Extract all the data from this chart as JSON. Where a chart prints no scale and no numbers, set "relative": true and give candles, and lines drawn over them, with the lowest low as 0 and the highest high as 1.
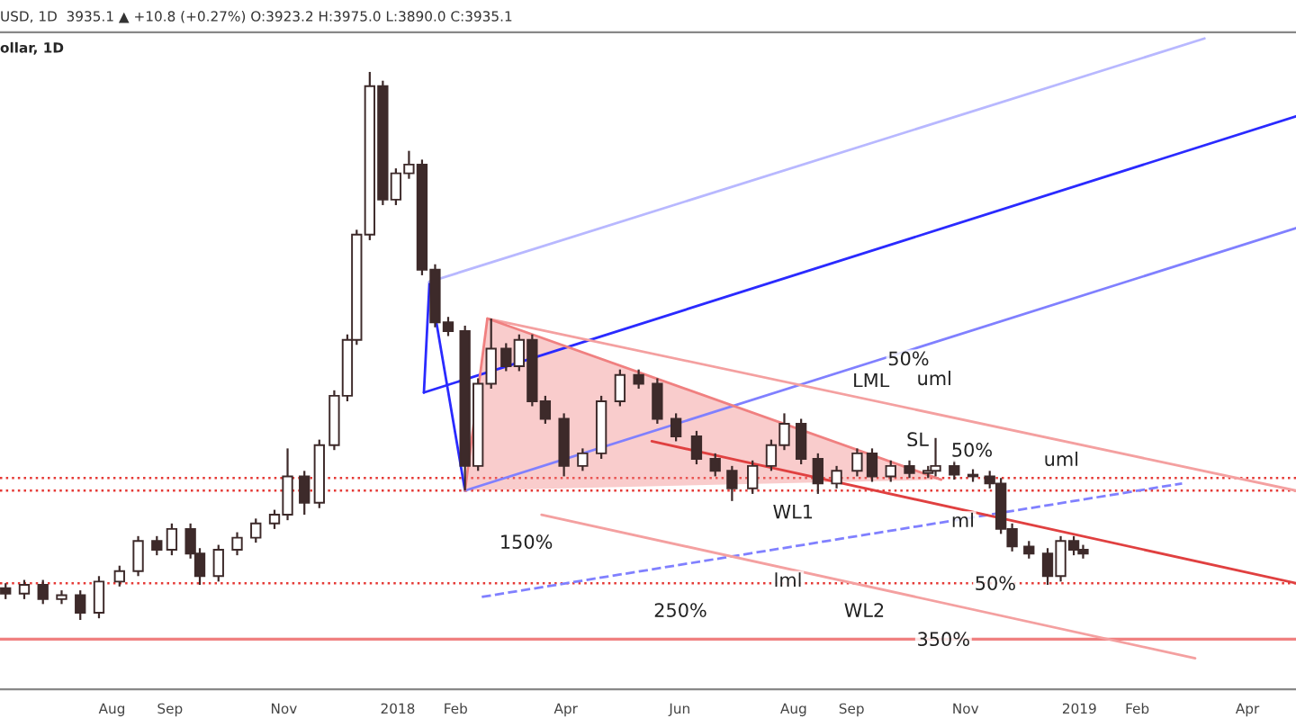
{
  "chart_data": {
    "type": "candlestick",
    "relative": true,
    "title": "ollar, 1D",
    "annotations": [
      "USD, 1D  3935.1 ▲ +10.8 (+0.27%) O:3923.2 H:3975.0 L:3890.0 C:3935.1",
      "50%",
      "uml",
      "LML",
      "SL",
      "50%",
      "uml",
      "WL1",
      "ml",
      "150%",
      "lml",
      "250%",
      "WL2",
      "50%",
      "350%"
    ],
    "x": [
      "2017-06-05",
      "2017-06-15",
      "2017-06-25",
      "2017-07-05",
      "2017-07-15",
      "2017-07-25",
      "2017-08-05",
      "2017-08-15",
      "2017-08-25",
      "2017-09-02",
      "2017-09-12",
      "2017-09-17",
      "2017-09-27",
      "2017-10-07",
      "2017-10-17",
      "2017-10-27",
      "2017-11-03",
      "2017-11-12",
      "2017-11-20",
      "2017-11-28",
      "2017-12-05",
      "2017-12-10",
      "2017-12-17",
      "2017-12-24",
      "2017-12-31",
      "2018-01-07",
      "2018-01-14",
      "2018-01-21",
      "2018-01-28",
      "2018-02-06",
      "2018-02-13",
      "2018-02-20",
      "2018-02-28",
      "2018-03-07",
      "2018-03-14",
      "2018-03-21",
      "2018-03-31",
      "2018-04-10",
      "2018-04-20",
      "2018-04-30",
      "2018-05-10",
      "2018-05-20",
      "2018-05-30",
      "2018-06-10",
      "2018-06-20",
      "2018-06-29",
      "2018-07-10",
      "2018-07-20",
      "2018-07-27",
      "2018-08-05",
      "2018-08-14",
      "2018-08-24",
      "2018-09-04",
      "2018-09-12",
      "2018-09-22",
      "2018-10-02",
      "2018-10-12",
      "2018-10-16",
      "2018-10-26",
      "2018-11-05",
      "2018-11-14",
      "2018-11-20",
      "2018-11-26",
      "2018-12-05",
      "2018-12-15",
      "2018-12-22",
      "2018-12-29",
      "2019-01-03"
    ],
    "ohlc": [
      [
        0.058,
        0.067,
        0.038,
        0.048
      ],
      [
        0.048,
        0.073,
        0.038,
        0.064
      ],
      [
        0.064,
        0.073,
        0.029,
        0.038
      ],
      [
        0.038,
        0.054,
        0.029,
        0.045
      ],
      [
        0.045,
        0.054,
        0,
        0.013
      ],
      [
        0.013,
        0.08,
        0.003,
        0.07
      ],
      [
        0.07,
        0.099,
        0.061,
        0.089
      ],
      [
        0.089,
        0.153,
        0.08,
        0.144
      ],
      [
        0.144,
        0.153,
        0.118,
        0.128
      ],
      [
        0.128,
        0.176,
        0.118,
        0.166
      ],
      [
        0.166,
        0.176,
        0.112,
        0.121
      ],
      [
        0.121,
        0.131,
        0.064,
        0.08
      ],
      [
        0.08,
        0.137,
        0.07,
        0.128
      ],
      [
        0.128,
        0.16,
        0.118,
        0.15
      ],
      [
        0.15,
        0.185,
        0.141,
        0.176
      ],
      [
        0.176,
        0.201,
        0.166,
        0.192
      ],
      [
        0.192,
        0.313,
        0.182,
        0.262
      ],
      [
        0.262,
        0.272,
        0.192,
        0.214
      ],
      [
        0.214,
        0.329,
        0.204,
        0.319
      ],
      [
        0.319,
        0.419,
        0.31,
        0.409
      ],
      [
        0.409,
        0.521,
        0.399,
        0.511
      ],
      [
        0.511,
        0.712,
        0.502,
        0.703
      ],
      [
        0.703,
        1,
        0.693,
        0.974
      ],
      [
        0.974,
        0.984,
        0.757,
        0.767
      ],
      [
        0.767,
        0.824,
        0.757,
        0.815
      ],
      [
        0.815,
        0.856,
        0.805,
        0.831
      ],
      [
        0.831,
        0.84,
        0.629,
        0.639
      ],
      [
        0.639,
        0.649,
        0.534,
        0.543
      ],
      [
        0.543,
        0.553,
        0.518,
        0.527
      ],
      [
        0.527,
        0.537,
        0.236,
        0.281
      ],
      [
        0.281,
        0.441,
        0.272,
        0.431
      ],
      [
        0.431,
        0.55,
        0.422,
        0.495
      ],
      [
        0.495,
        0.505,
        0.454,
        0.463
      ],
      [
        0.463,
        0.521,
        0.454,
        0.511
      ],
      [
        0.511,
        0.521,
        0.39,
        0.399
      ],
      [
        0.399,
        0.409,
        0.358,
        0.367
      ],
      [
        0.367,
        0.377,
        0.262,
        0.281
      ],
      [
        0.281,
        0.313,
        0.272,
        0.304
      ],
      [
        0.304,
        0.409,
        0.294,
        0.399
      ],
      [
        0.399,
        0.457,
        0.39,
        0.447
      ],
      [
        0.447,
        0.457,
        0.422,
        0.431
      ],
      [
        0.431,
        0.441,
        0.358,
        0.367
      ],
      [
        0.367,
        0.377,
        0.326,
        0.335
      ],
      [
        0.335,
        0.345,
        0.284,
        0.294
      ],
      [
        0.294,
        0.304,
        0.262,
        0.272
      ],
      [
        0.272,
        0.281,
        0.217,
        0.24
      ],
      [
        0.24,
        0.291,
        0.23,
        0.281
      ],
      [
        0.281,
        0.329,
        0.272,
        0.319
      ],
      [
        0.319,
        0.377,
        0.31,
        0.358
      ],
      [
        0.358,
        0.367,
        0.284,
        0.294
      ],
      [
        0.294,
        0.304,
        0.23,
        0.249
      ],
      [
        0.249,
        0.281,
        0.24,
        0.272
      ],
      [
        0.272,
        0.313,
        0.262,
        0.304
      ],
      [
        0.304,
        0.313,
        0.252,
        0.262
      ],
      [
        0.262,
        0.291,
        0.252,
        0.281
      ],
      [
        0.281,
        0.291,
        0.259,
        0.268
      ],
      [
        0.268,
        0.281,
        0.259,
        0.272
      ],
      [
        0.272,
        0.332,
        0.262,
        0.281
      ],
      [
        0.281,
        0.291,
        0.256,
        0.265
      ],
      [
        0.265,
        0.275,
        0.252,
        0.262
      ],
      [
        0.262,
        0.272,
        0.24,
        0.249
      ],
      [
        0.249,
        0.259,
        0.157,
        0.166
      ],
      [
        0.166,
        0.176,
        0.125,
        0.134
      ],
      [
        0.134,
        0.144,
        0.112,
        0.121
      ],
      [
        0.121,
        0.131,
        0.064,
        0.08
      ],
      [
        0.08,
        0.153,
        0.07,
        0.144
      ],
      [
        0.144,
        0.153,
        0.118,
        0.128
      ],
      [
        0.128,
        0.137,
        0.112,
        0.121
      ]
    ],
    "color": "#3d2a2a",
    "series": [
      {
        "type": "line",
        "color": "#2a2aff",
        "x": [
          "2018-01-15",
          "2019-04-27"
        ],
        "values": [
          0.415,
          0.919
        ]
      },
      {
        "type": "line",
        "color": "#2a2aff",
        "x": [
          "2018-01-18",
          "2018-02-06"
        ],
        "values": [
          0.617,
          0.236
        ]
      },
      {
        "type": "line",
        "color": "#2a2aff",
        "x": [
          "2018-01-15",
          "2018-01-18"
        ],
        "values": [
          0.415,
          0.617
        ]
      },
      {
        "type": "line",
        "color": "#b8b8ff",
        "x": [
          "2018-01-18",
          "2019-03-09"
        ],
        "values": [
          0.617,
          1.061
        ]
      },
      {
        "type": "line",
        "color": "#8080ff",
        "x": [
          "2018-02-06",
          "2019-04-27"
        ],
        "values": [
          0.236,
          0.715
        ]
      },
      {
        "type": "line",
        "color": "#8080ff",
        "line_style": "dashed",
        "x": [
          "2018-02-15",
          "2019-02-25"
        ],
        "values": [
          0.042,
          0.249
        ]
      },
      {
        "type": "line",
        "color": "#e04040",
        "x": [
          "2018-05-17",
          "2019-04-27"
        ],
        "values": [
          0.326,
          0.067
        ]
      },
      {
        "type": "line",
        "color": "#f4a0a0",
        "x": [
          "2018-02-18",
          "2019-04-27"
        ],
        "values": [
          0.55,
          0.236
        ]
      },
      {
        "type": "line",
        "color": "#f4a0a0",
        "x": [
          "2018-03-19",
          "2019-03-04"
        ],
        "values": [
          0.192,
          -0.07
        ]
      },
      {
        "type": "line",
        "color": "#f08080",
        "x": [
          "2018-02-06",
          "2018-02-18",
          "2018-10-19"
        ],
        "values": [
          0.236,
          0.55,
          0.256
        ],
        "lower": [
          0.236,
          0.237,
          0.256
        ],
        "upper": [
          0.236,
          0.55,
          0.256
        ]
      }
    ],
    "ref_lines": [
      {
        "axis": "y",
        "value": 0.259,
        "color": "#e53935",
        "line_style": "dotted"
      },
      {
        "axis": "y",
        "value": 0.236,
        "color": "#e53935",
        "line_style": "dotted"
      },
      {
        "axis": "y",
        "value": 0.067,
        "color": "#e53935",
        "line_style": "dotted"
      },
      {
        "axis": "y",
        "value": -0.035,
        "color": "#f08080",
        "line_style": "solid"
      }
    ],
    "xlim": [
      "2017-06-02",
      "2019-04-27"
    ],
    "xticks": [
      {
        "value": "2017-08-01",
        "label": "Aug"
      },
      {
        "value": "2017-09-01",
        "label": "Sep"
      },
      {
        "value": "2017-11-01",
        "label": "Nov"
      },
      {
        "value": "2018-01-01",
        "label": "2018"
      },
      {
        "value": "2018-02-01",
        "label": "Feb"
      },
      {
        "value": "2018-04-01",
        "label": "Apr"
      },
      {
        "value": "2018-06-01",
        "label": "Jun"
      },
      {
        "value": "2018-08-01",
        "label": "Aug"
      },
      {
        "value": "2018-09-01",
        "label": "Sep"
      },
      {
        "value": "2018-11-01",
        "label": "Nov"
      },
      {
        "value": "2019-01-01",
        "label": "2019"
      },
      {
        "value": "2019-02-01",
        "label": "Feb"
      },
      {
        "value": "2019-04-01",
        "label": "Apr"
      }
    ],
    "tick_labels": "x",
    "grid": false,
    "legend": false
  }
}
